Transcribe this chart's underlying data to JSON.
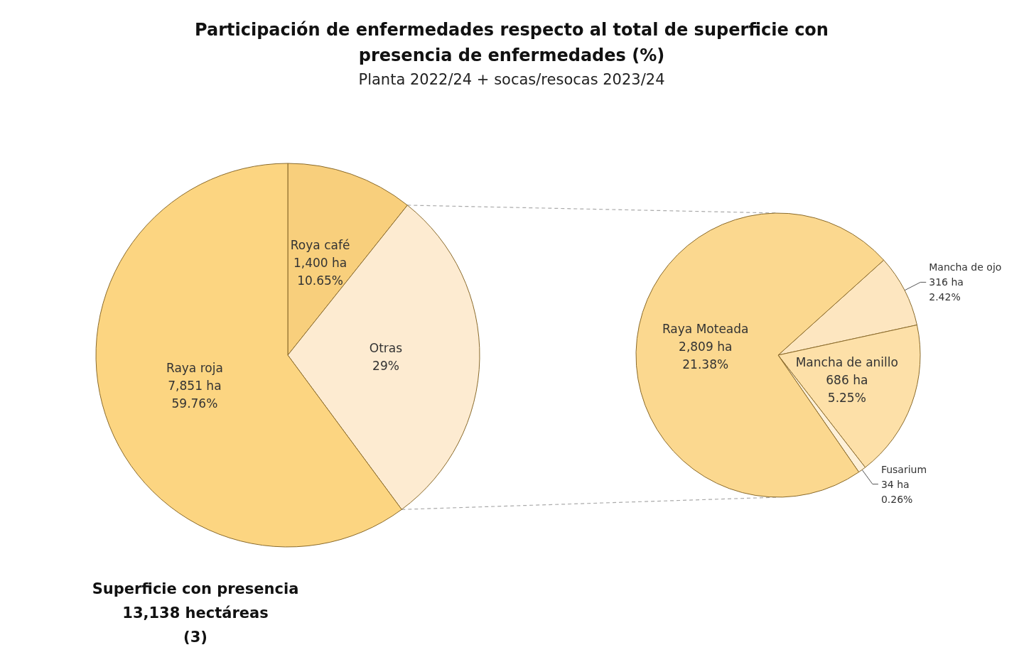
{
  "chart_data": [
    {
      "type": "pie",
      "title": "Participación de enfermedades respecto al total de superficie con presencia de enfermedades (%)",
      "subtitle": "Planta 2022/24 + socas/resocas 2023/24",
      "categories": [
        "Roya café",
        "Otras",
        "Raya roja"
      ],
      "values": [
        10.65,
        29,
        59.76
      ],
      "value_labels": [
        "1,400 ha\n10.65%",
        "29%",
        "7,851 ha\n59.76%"
      ],
      "colors": [
        "#f8cf7c",
        "#fdebd1",
        "#fcd581"
      ],
      "annotations": [
        "Superficie con presencia\n13,138 hectáreas\n(3)"
      ]
    },
    {
      "type": "pie",
      "categories": [
        "Mancha de ojo",
        "Mancha de anillo",
        "Fusarium",
        "Raya Moteada"
      ],
      "values": [
        2.42,
        5.25,
        0.26,
        21.38
      ],
      "value_labels": [
        "316 ha\n2.42%",
        "686 ha\n5.25%",
        "34 ha\n0.26%",
        "2,809 ha\n21.38%"
      ],
      "colors": [
        "#fde6c0",
        "#fde0a8",
        "#fdf0d8",
        "#fbd88f"
      ]
    }
  ]
}
